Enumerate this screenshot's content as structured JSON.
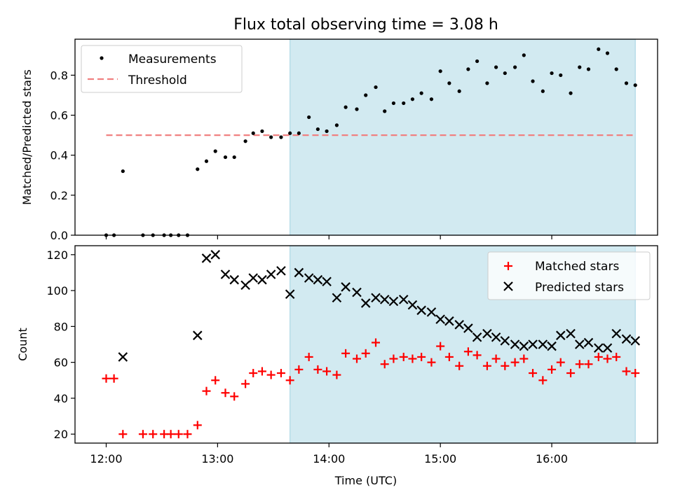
{
  "chart_data": {
    "title": "Flux total observing time = 3.08 h",
    "xlabel": "Time (UTC)",
    "x_ticks": [
      "12:00",
      "13:00",
      "14:00",
      "15:00",
      "16:00"
    ],
    "x_range_hours": [
      11.72,
      16.95
    ],
    "shaded_region_hours": [
      13.65,
      16.75
    ],
    "shaded_color": "#add8e6",
    "panels": [
      {
        "type": "scatter",
        "ylabel": "Matched/Predicted stars",
        "ylim": [
          0,
          0.98
        ],
        "y_ticks": [
          0.0,
          0.2,
          0.4,
          0.6,
          0.8
        ],
        "legend_position": "top-left",
        "threshold": {
          "name": "Threshold",
          "value": 0.5,
          "x_range": [
            12.0,
            16.75
          ],
          "color": "#f08080",
          "style": "dashed"
        },
        "series": [
          {
            "name": "Measurements",
            "color": "#000000",
            "marker": "dot",
            "x": [
              12.0,
              12.07,
              12.15,
              12.33,
              12.42,
              12.52,
              12.58,
              12.65,
              12.73,
              12.82,
              12.9,
              12.98,
              13.07,
              13.15,
              13.25,
              13.32,
              13.4,
              13.48,
              13.57,
              13.65,
              13.73,
              13.82,
              13.9,
              13.98,
              14.07,
              14.15,
              14.25,
              14.33,
              14.42,
              14.5,
              14.58,
              14.67,
              14.75,
              14.83,
              14.92,
              15.0,
              15.08,
              15.17,
              15.25,
              15.33,
              15.42,
              15.5,
              15.58,
              15.67,
              15.75,
              15.83,
              15.92,
              16.0,
              16.08,
              16.17,
              16.25,
              16.33,
              16.42,
              16.5,
              16.58,
              16.67,
              16.75
            ],
            "y": [
              0.0,
              0.0,
              0.32,
              0.0,
              0.0,
              0.0,
              0.0,
              0.0,
              0.0,
              0.33,
              0.37,
              0.42,
              0.39,
              0.39,
              0.47,
              0.51,
              0.52,
              0.49,
              0.49,
              0.51,
              0.51,
              0.59,
              0.53,
              0.52,
              0.55,
              0.64,
              0.63,
              0.7,
              0.74,
              0.62,
              0.66,
              0.66,
              0.68,
              0.71,
              0.68,
              0.82,
              0.76,
              0.72,
              0.83,
              0.87,
              0.76,
              0.84,
              0.81,
              0.84,
              0.9,
              0.77,
              0.72,
              0.81,
              0.8,
              0.71,
              0.84,
              0.83,
              0.93,
              0.91,
              0.83,
              0.76,
              0.75
            ]
          }
        ]
      },
      {
        "type": "scatter",
        "ylabel": "Count",
        "ylim": [
          15,
          125
        ],
        "y_ticks": [
          20,
          40,
          60,
          80,
          100,
          120
        ],
        "legend_position": "top-right",
        "series": [
          {
            "name": "Matched stars",
            "color": "#ff0000",
            "marker": "plus",
            "x": [
              12.0,
              12.07,
              12.15,
              12.33,
              12.42,
              12.52,
              12.58,
              12.65,
              12.73,
              12.82,
              12.9,
              12.98,
              13.07,
              13.15,
              13.25,
              13.32,
              13.4,
              13.48,
              13.57,
              13.65,
              13.73,
              13.82,
              13.9,
              13.98,
              14.07,
              14.15,
              14.25,
              14.33,
              14.42,
              14.5,
              14.58,
              14.67,
              14.75,
              14.83,
              14.92,
              15.0,
              15.08,
              15.17,
              15.25,
              15.33,
              15.42,
              15.5,
              15.58,
              15.67,
              15.75,
              15.83,
              15.92,
              16.0,
              16.08,
              16.17,
              16.25,
              16.33,
              16.42,
              16.5,
              16.58,
              16.67,
              16.75
            ],
            "y": [
              51,
              51,
              20,
              20,
              20,
              20,
              20,
              20,
              20,
              25,
              44,
              50,
              43,
              41,
              48,
              54,
              55,
              53,
              54,
              50,
              56,
              63,
              56,
              55,
              53,
              65,
              62,
              65,
              71,
              59,
              62,
              63,
              62,
              63,
              60,
              69,
              63,
              58,
              66,
              64,
              58,
              62,
              58,
              60,
              62,
              54,
              50,
              56,
              60,
              54,
              59,
              59,
              63,
              62,
              63,
              55,
              54
            ]
          },
          {
            "name": "Predicted stars",
            "color": "#000000",
            "marker": "x",
            "x": [
              12.15,
              12.82,
              12.9,
              12.98,
              13.07,
              13.15,
              13.25,
              13.32,
              13.4,
              13.48,
              13.57,
              13.65,
              13.73,
              13.82,
              13.9,
              13.98,
              14.07,
              14.15,
              14.25,
              14.33,
              14.42,
              14.5,
              14.58,
              14.67,
              14.75,
              14.83,
              14.92,
              15.0,
              15.08,
              15.17,
              15.25,
              15.33,
              15.42,
              15.5,
              15.58,
              15.67,
              15.75,
              15.83,
              15.92,
              16.0,
              16.08,
              16.17,
              16.25,
              16.33,
              16.42,
              16.5,
              16.58,
              16.67,
              16.75
            ],
            "y": [
              63,
              75,
              118,
              120,
              109,
              106,
              103,
              107,
              106,
              109,
              111,
              98,
              110,
              107,
              106,
              105,
              96,
              102,
              99,
              93,
              96,
              95,
              94,
              95,
              92,
              89,
              88,
              84,
              83,
              81,
              79,
              74,
              76,
              74,
              72,
              70,
              69,
              70,
              70,
              69,
              75,
              76,
              70,
              71,
              68,
              68,
              76,
              73,
              72
            ]
          }
        ]
      }
    ]
  }
}
